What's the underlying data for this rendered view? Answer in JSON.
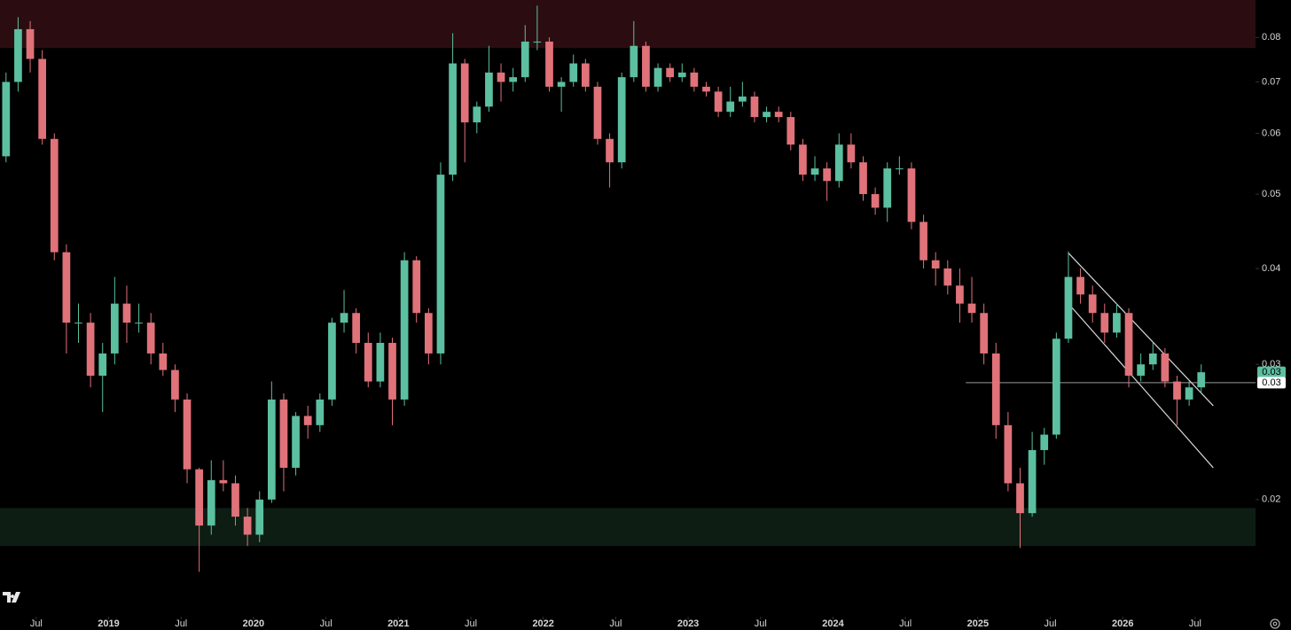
{
  "chart_data": {
    "type": "candlestick",
    "log_scale": true,
    "grid": false,
    "up_color": "#5bbfa0",
    "down_color": "#e0727a",
    "x": [
      "2018-04",
      "2018-05",
      "2018-06",
      "2018-07",
      "2018-08",
      "2018-09",
      "2018-10",
      "2018-11",
      "2018-12",
      "2019-01",
      "2019-02",
      "2019-03",
      "2019-04",
      "2019-05",
      "2019-06",
      "2019-07",
      "2019-08",
      "2019-09",
      "2019-10",
      "2019-11",
      "2019-12",
      "2020-01",
      "2020-02",
      "2020-03",
      "2020-04",
      "2020-05",
      "2020-06",
      "2020-07",
      "2020-08",
      "2020-09",
      "2020-10",
      "2020-11",
      "2020-12",
      "2021-01",
      "2021-02",
      "2021-03",
      "2021-04",
      "2021-05",
      "2021-06",
      "2021-07",
      "2021-08",
      "2021-09",
      "2021-10",
      "2021-11",
      "2021-12",
      "2022-01",
      "2022-02",
      "2022-03",
      "2022-04",
      "2022-05",
      "2022-06",
      "2022-07",
      "2022-08",
      "2022-09",
      "2022-10",
      "2022-11",
      "2022-12",
      "2023-01",
      "2023-02",
      "2023-03",
      "2023-04",
      "2023-05",
      "2023-06",
      "2023-07",
      "2023-08",
      "2023-09",
      "2023-10",
      "2023-11",
      "2023-12",
      "2024-01",
      "2024-02",
      "2024-03",
      "2024-04",
      "2024-05",
      "2024-06",
      "2024-07",
      "2024-08",
      "2024-09",
      "2024-10",
      "2024-11",
      "2024-12",
      "2025-01",
      "2025-02",
      "2025-03",
      "2025-04",
      "2025-05",
      "2025-06",
      "2025-07",
      "2025-08",
      "2025-09",
      "2025-10",
      "2025-11",
      "2025-12",
      "2026-01",
      "2026-02",
      "2026-03",
      "2026-04",
      "2026-05",
      "2026-06",
      "2026-07"
    ],
    "open": [
      0.056,
      0.07,
      0.082,
      0.075,
      0.059,
      0.042,
      0.034,
      0.034,
      0.029,
      0.031,
      0.036,
      0.034,
      0.034,
      0.031,
      0.0295,
      0.027,
      0.0219,
      0.0185,
      0.0212,
      0.021,
      0.019,
      0.018,
      0.02,
      0.027,
      0.022,
      0.0257,
      0.025,
      0.027,
      0.034,
      0.035,
      0.032,
      0.0285,
      0.032,
      0.027,
      0.041,
      0.035,
      0.031,
      0.053,
      0.074,
      0.062,
      0.065,
      0.072,
      0.07,
      0.071,
      0.079,
      0.079,
      0.069,
      0.07,
      0.074,
      0.069,
      0.059,
      0.055,
      0.071,
      0.078,
      0.069,
      0.073,
      0.071,
      0.072,
      0.069,
      0.068,
      0.064,
      0.066,
      0.067,
      0.063,
      0.064,
      0.063,
      0.058,
      0.053,
      0.054,
      0.052,
      0.058,
      0.055,
      0.05,
      0.048,
      0.054,
      0.054,
      0.046,
      0.041,
      0.04,
      0.038,
      0.036,
      0.035,
      0.031,
      0.025,
      0.021,
      0.0192,
      0.0232,
      0.0243,
      0.0324,
      0.039,
      0.037,
      0.035,
      0.033,
      0.035,
      0.029,
      0.03,
      0.031,
      0.0285,
      0.027,
      0.028
    ],
    "high": [
      0.072,
      0.085,
      0.084,
      0.077,
      0.06,
      0.043,
      0.036,
      0.035,
      0.032,
      0.039,
      0.038,
      0.036,
      0.035,
      0.032,
      0.03,
      0.0275,
      0.022,
      0.0225,
      0.0225,
      0.0215,
      0.0195,
      0.0205,
      0.0285,
      0.0275,
      0.026,
      0.0265,
      0.0275,
      0.0345,
      0.0375,
      0.0355,
      0.033,
      0.033,
      0.0325,
      0.042,
      0.0415,
      0.0355,
      0.055,
      0.081,
      0.075,
      0.066,
      0.078,
      0.074,
      0.073,
      0.083,
      0.088,
      0.08,
      0.071,
      0.076,
      0.075,
      0.07,
      0.06,
      0.072,
      0.084,
      0.079,
      0.074,
      0.074,
      0.074,
      0.073,
      0.07,
      0.069,
      0.069,
      0.07,
      0.068,
      0.065,
      0.065,
      0.064,
      0.059,
      0.056,
      0.055,
      0.06,
      0.06,
      0.056,
      0.051,
      0.055,
      0.056,
      0.055,
      0.047,
      0.042,
      0.041,
      0.04,
      0.039,
      0.036,
      0.032,
      0.026,
      0.022,
      0.0245,
      0.0248,
      0.033,
      0.0421,
      0.04,
      0.038,
      0.036,
      0.036,
      0.0355,
      0.031,
      0.032,
      0.0315,
      0.029,
      0.0285,
      0.03
    ],
    "low": [
      0.055,
      0.068,
      0.072,
      0.058,
      0.041,
      0.031,
      0.032,
      0.028,
      0.026,
      0.03,
      0.032,
      0.033,
      0.03,
      0.029,
      0.026,
      0.021,
      0.0161,
      0.018,
      0.0205,
      0.0185,
      0.0174,
      0.0176,
      0.0198,
      0.0205,
      0.0215,
      0.024,
      0.0245,
      0.0265,
      0.033,
      0.031,
      0.028,
      0.028,
      0.025,
      0.0265,
      0.034,
      0.03,
      0.03,
      0.052,
      0.055,
      0.06,
      0.064,
      0.066,
      0.068,
      0.07,
      0.077,
      0.068,
      0.064,
      0.069,
      0.068,
      0.058,
      0.051,
      0.054,
      0.07,
      0.068,
      0.068,
      0.07,
      0.07,
      0.068,
      0.067,
      0.063,
      0.063,
      0.065,
      0.062,
      0.062,
      0.062,
      0.057,
      0.052,
      0.052,
      0.049,
      0.051,
      0.054,
      0.049,
      0.047,
      0.046,
      0.053,
      0.045,
      0.04,
      0.038,
      0.037,
      0.034,
      0.034,
      0.03,
      0.024,
      0.0205,
      0.0173,
      0.019,
      0.0222,
      0.024,
      0.032,
      0.036,
      0.034,
      0.032,
      0.0325,
      0.028,
      0.0285,
      0.0295,
      0.028,
      0.025,
      0.0265,
      0.0275
    ],
    "close": [
      0.07,
      0.082,
      0.075,
      0.059,
      0.042,
      0.034,
      0.034,
      0.029,
      0.031,
      0.036,
      0.034,
      0.034,
      0.031,
      0.0295,
      0.027,
      0.0219,
      0.0185,
      0.0212,
      0.021,
      0.019,
      0.018,
      0.02,
      0.027,
      0.022,
      0.0257,
      0.025,
      0.027,
      0.034,
      0.035,
      0.032,
      0.0285,
      0.032,
      0.027,
      0.041,
      0.035,
      0.031,
      0.053,
      0.074,
      0.062,
      0.065,
      0.072,
      0.07,
      0.071,
      0.079,
      0.079,
      0.069,
      0.07,
      0.074,
      0.069,
      0.059,
      0.055,
      0.071,
      0.078,
      0.069,
      0.073,
      0.071,
      0.072,
      0.069,
      0.068,
      0.064,
      0.066,
      0.067,
      0.063,
      0.064,
      0.063,
      0.058,
      0.053,
      0.054,
      0.052,
      0.058,
      0.055,
      0.05,
      0.048,
      0.054,
      0.054,
      0.046,
      0.041,
      0.04,
      0.038,
      0.036,
      0.035,
      0.031,
      0.025,
      0.021,
      0.0192,
      0.0232,
      0.0243,
      0.0324,
      0.039,
      0.037,
      0.035,
      0.033,
      0.035,
      0.029,
      0.03,
      0.031,
      0.0285,
      0.027,
      0.028,
      0.0293
    ],
    "last_label": "0.03",
    "xlim": [
      "2018-04",
      "2026-12"
    ],
    "xticks": [
      {
        "value": "2018-07",
        "label": "Jul"
      },
      {
        "value": "2019-01",
        "label": "2019"
      },
      {
        "value": "2019-07",
        "label": "Jul"
      },
      {
        "value": "2020-01",
        "label": "2020"
      },
      {
        "value": "2020-07",
        "label": "Jul"
      },
      {
        "value": "2021-01",
        "label": "2021"
      },
      {
        "value": "2021-07",
        "label": "Jul"
      },
      {
        "value": "2022-01",
        "label": "2022"
      },
      {
        "value": "2022-07",
        "label": "Jul"
      },
      {
        "value": "2023-01",
        "label": "2023"
      },
      {
        "value": "2023-07",
        "label": "Jul"
      },
      {
        "value": "2024-01",
        "label": "2024"
      },
      {
        "value": "2024-07",
        "label": "Jul"
      },
      {
        "value": "2025-01",
        "label": "2025"
      },
      {
        "value": "2025-07",
        "label": "Jul"
      },
      {
        "value": "2026-01",
        "label": "2026"
      },
      {
        "value": "2026-07",
        "label": "Jul"
      }
    ],
    "ylim": [
      0.0143,
      0.0895
    ],
    "yticks": [
      0.02,
      0.03,
      0.04,
      0.05,
      0.06,
      0.07,
      0.08
    ],
    "zones": [
      {
        "from": 0.0775,
        "to": 0.0895,
        "color": "#2b0d11"
      },
      {
        "from": 0.0174,
        "to": 0.0195,
        "color": "#0e1d13"
      }
    ],
    "hline": {
      "value": 0.0284,
      "label": "0.03",
      "from": "2024-12"
    },
    "trendlines": [
      {
        "x": [
          "2025-08",
          "2026-08"
        ],
        "y": [
          0.0419,
          0.0265
        ]
      },
      {
        "x": [
          "2025-08",
          "2026-08"
        ],
        "y": [
          0.036,
          0.022
        ]
      }
    ]
  }
}
